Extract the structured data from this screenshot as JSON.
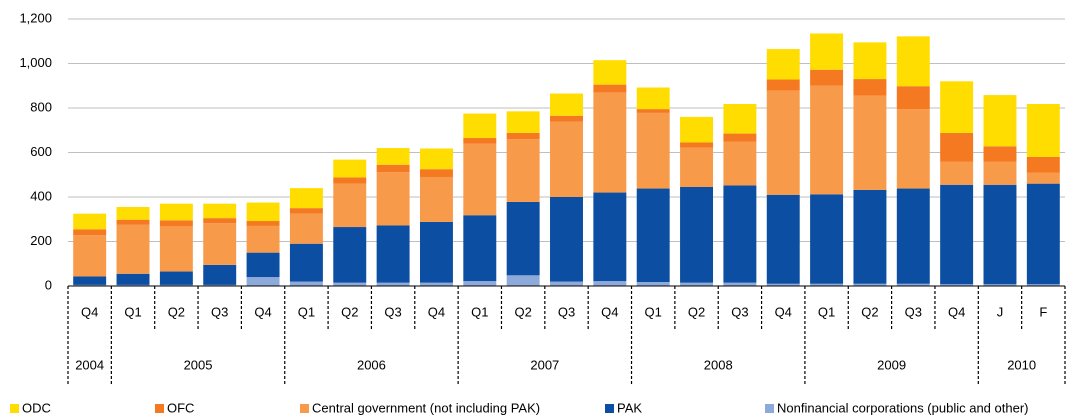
{
  "chart_data": {
    "type": "stacked_bar",
    "categories": [
      "Q4",
      "Q1",
      "Q2",
      "Q3",
      "Q4",
      "Q1",
      "Q2",
      "Q3",
      "Q4",
      "Q1",
      "Q2",
      "Q3",
      "Q4",
      "Q1",
      "Q2",
      "Q3",
      "Q4",
      "Q1",
      "Q2",
      "Q3",
      "Q4",
      "J",
      "F"
    ],
    "x_groups": [
      {
        "label": "2004",
        "count": 1
      },
      {
        "label": "2005",
        "count": 4
      },
      {
        "label": "2006",
        "count": 4
      },
      {
        "label": "2007",
        "count": 4
      },
      {
        "label": "2008",
        "count": 4
      },
      {
        "label": "2009",
        "count": 4
      },
      {
        "label": "2010",
        "count": 2
      }
    ],
    "series": [
      {
        "name": "ODC",
        "color": "#ffdd00",
        "values": [
          70,
          57,
          75,
          65,
          83,
          90,
          80,
          75,
          93,
          110,
          97,
          100,
          110,
          97,
          115,
          133,
          137,
          163,
          165,
          224,
          232,
          230,
          238
        ]
      },
      {
        "name": "OFC",
        "color": "#f47920",
        "values": [
          27,
          23,
          27,
          23,
          22,
          25,
          28,
          33,
          35,
          25,
          28,
          27,
          35,
          17,
          23,
          37,
          50,
          72,
          75,
          103,
          130,
          70,
          70
        ]
      },
      {
        "name": "Central government (not including PAK)",
        "color": "#f79a4a",
        "values": [
          185,
          220,
          203,
          187,
          120,
          135,
          195,
          240,
          202,
          322,
          282,
          338,
          450,
          340,
          177,
          196,
          468,
          488,
          423,
          357,
          103,
          103,
          50
        ]
      },
      {
        "name": "PAK",
        "color": "#0b4ea2",
        "values": [
          38,
          50,
          60,
          90,
          110,
          170,
          250,
          257,
          273,
          296,
          330,
          380,
          398,
          420,
          430,
          437,
          400,
          402,
          422,
          428,
          447,
          447,
          452
        ]
      },
      {
        "name": "Nonfinancial corporations (public and other)",
        "color": "#8eaadb",
        "values": [
          5,
          5,
          5,
          5,
          40,
          20,
          15,
          15,
          15,
          22,
          48,
          20,
          22,
          18,
          15,
          15,
          10,
          10,
          10,
          10,
          8,
          8,
          8
        ]
      }
    ],
    "ylim": [
      0,
      1200
    ],
    "yticks": [
      0,
      {
        "value": 200,
        "label": "200"
      },
      400,
      600,
      800,
      {
        "value": 1000,
        "label": "1,000"
      },
      {
        "value": 1200,
        "label": "1,200"
      }
    ],
    "grid": true,
    "legend": "bottom"
  }
}
